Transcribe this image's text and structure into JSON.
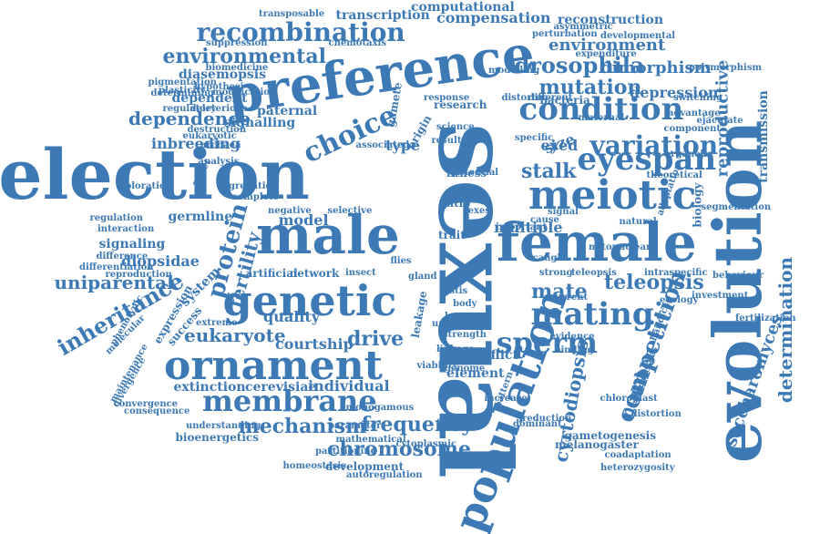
{
  "cloud": {
    "color": "#3d7ab5",
    "words": [
      "sexual",
      "selection",
      "evolution",
      "male",
      "female",
      "preference",
      "population",
      "genetic",
      "ornament",
      "meiotic",
      "condition",
      "mating",
      "membrane",
      "sperm",
      "eyespan",
      "choice",
      "recombination",
      "variation",
      "protein",
      "inheritance",
      "drosophila",
      "mutation",
      "mechanism",
      "frequency",
      "chromosome",
      "competition",
      "determination",
      "environmental",
      "cyrtodiopsis",
      "teleopsis",
      "stalk",
      "dependence",
      "mate",
      "reproductive",
      "environment",
      "eukaryote",
      "drive",
      "dimorphism",
      "compensation",
      "transcription",
      "computational",
      "reconstruction",
      "fertility",
      "uniparental",
      "number",
      "saccharomyces",
      "quality",
      "courtship",
      "individual",
      "extinction",
      "cerevisiae",
      "inbreeding",
      "diopsidae",
      "model",
      "germline",
      "signaling",
      "multiple",
      "conflict",
      "element",
      "transmission",
      "biology",
      "gametogenesis",
      "melanogaster",
      "development",
      "bioenergetics",
      "depression",
      "eyed",
      "size",
      "type",
      "diasemopsis",
      "signalling",
      "paternal",
      "research",
      "fitness",
      "artificial",
      "network",
      "insect",
      "trait",
      "flies",
      "gland",
      "dependent",
      "eukaryotic",
      "archaea",
      "system",
      "expression",
      "success",
      "maintenance",
      "divergence",
      "phenotypic",
      "molecular",
      "interaction",
      "regulation",
      "difference",
      "understanding",
      "mathematical",
      "cytoplasmic",
      "autoregulation",
      "homeostasis",
      "coadaptation",
      "heterozygosity",
      "leakage",
      "correlated",
      "pattern",
      "reduction",
      "dominant",
      "evidence",
      "current",
      "ecology",
      "investment",
      "fertilization",
      "behaviour",
      "handicap",
      "processes",
      "theoretical",
      "adaptation",
      "organelle",
      "advantage",
      "ejaculate",
      "component",
      "switching",
      "polymorphism",
      "developmental",
      "asymmetric",
      "perturbation",
      "expenditure",
      "suppression",
      "chemotaxis",
      "modification",
      "plasticity",
      "hypothesi",
      "regulatory",
      "deleterious",
      "destruction",
      "pigmentation",
      "determining",
      "biomedicine",
      "transposable",
      "gamete",
      "origin",
      "bacteria",
      "science",
      "response",
      "distorter",
      "different",
      "cause",
      "signal",
      "sexes",
      "ratio",
      "teleopsis",
      "binding",
      "linkage",
      "viability",
      "genome",
      "strong",
      "caught",
      "testis",
      "body",
      "larger",
      "extreme",
      "coloration",
      "segregation",
      "complete",
      "analysis",
      "associated",
      "result",
      "negative",
      "selective",
      "effect",
      "maternal",
      "specific",
      "important",
      "potential",
      "modelling",
      "mitonuclear",
      "natural",
      "distortion",
      "segmentation",
      "intraspecific",
      "chloroplast",
      "convergence",
      "consequence",
      "differentiation",
      "reproduction",
      "monogamous",
      "partitioning",
      "parameter",
      "universal",
      "strength",
      "increase",
      "background"
    ]
  }
}
